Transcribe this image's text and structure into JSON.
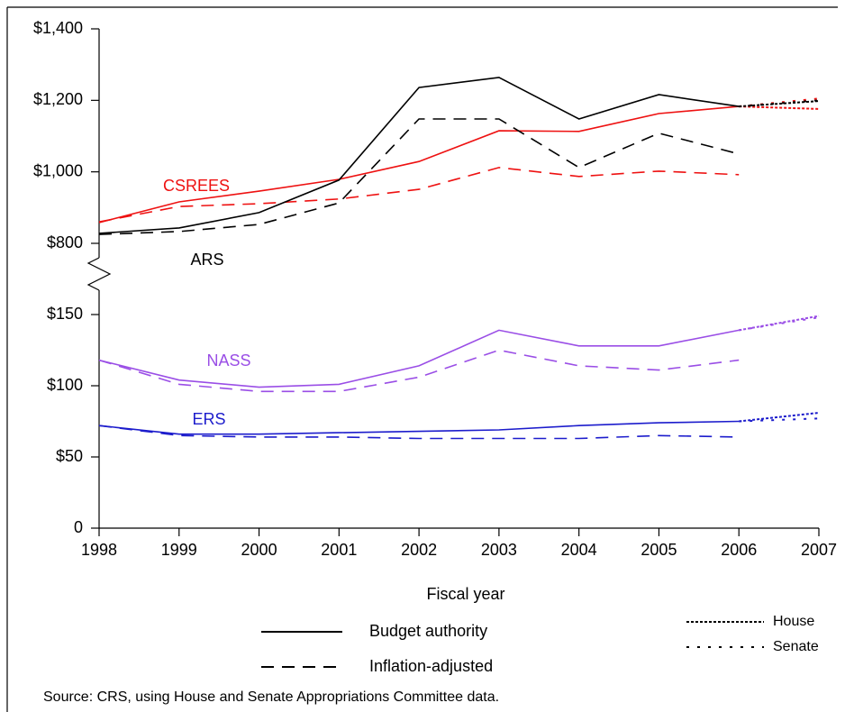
{
  "chart_data": {
    "type": "line",
    "x_label": "Fiscal year",
    "source": "Source: CRS, using House and Senate Appropriations Committee data.",
    "x": [
      1998,
      1999,
      2000,
      2001,
      2002,
      2003,
      2004,
      2005,
      2006,
      2007
    ],
    "xlim": [
      1998,
      2007
    ],
    "xticks": [
      1998,
      1999,
      2000,
      2001,
      2002,
      2003,
      2004,
      2005,
      2006,
      2007
    ],
    "ylim": [
      0,
      150
    ],
    "yticks": [
      0,
      {
        "value": 50,
        "label": "$50"
      },
      {
        "value": 100,
        "label": "$100"
      },
      {
        "value": 150,
        "label": "$150"
      }
    ],
    "ylim_upper": [
      800,
      1400
    ],
    "yticks_upper": [
      {
        "value": 800,
        "label": "$800"
      },
      {
        "value": 1000,
        "label": "$1,000"
      },
      {
        "value": 1200,
        "label": "$1,200"
      },
      {
        "value": 1400,
        "label": "$1,400"
      }
    ],
    "line_styles": [
      {
        "label": "Budget authority",
        "dash": "none"
      },
      {
        "label": "Inflation-adjusted",
        "dash": "14 9"
      },
      {
        "label": "House",
        "dash": "3 2"
      },
      {
        "label": "Senate",
        "dash": "3 9"
      }
    ],
    "series": [
      {
        "name": "CSREES",
        "color": "#ee1111",
        "axis": "upper",
        "values": [
          858,
          916,
          946,
          979,
          1029,
          1115,
          1113,
          1163,
          1183,
          null
        ],
        "inflation_adjusted": [
          860,
          903,
          911,
          924,
          951,
          1012,
          987,
          1002,
          992,
          null
        ],
        "house": [
          null,
          null,
          null,
          null,
          null,
          null,
          null,
          null,
          null,
          1176
        ],
        "senate": [
          null,
          null,
          null,
          null,
          null,
          null,
          null,
          null,
          null,
          1205
        ]
      },
      {
        "name": "ARS",
        "color": "#000000",
        "axis": "upper",
        "values": [
          828,
          843,
          886,
          977,
          1236,
          1264,
          1148,
          1216,
          1183,
          null
        ],
        "inflation_adjusted": [
          825,
          833,
          853,
          913,
          1148,
          1148,
          1012,
          1108,
          1050,
          null
        ],
        "house": [
          null,
          null,
          null,
          null,
          null,
          null,
          null,
          null,
          null,
          1198
        ],
        "senate": [
          null,
          null,
          null,
          null,
          null,
          null,
          null,
          null,
          null,
          1200
        ]
      },
      {
        "name": "NASS",
        "color": "#9a4ee6",
        "axis": "lower",
        "values": [
          118,
          104,
          99,
          101,
          114,
          139,
          128,
          128,
          139,
          null
        ],
        "inflation_adjusted": [
          118,
          101,
          96,
          96,
          106,
          125,
          114,
          111,
          118,
          null
        ],
        "house": [
          null,
          null,
          null,
          null,
          null,
          null,
          null,
          null,
          null,
          149
        ],
        "senate": [
          null,
          null,
          null,
          null,
          null,
          null,
          null,
          null,
          null,
          148
        ]
      },
      {
        "name": "ERS",
        "color": "#1c1ccc",
        "axis": "lower",
        "values": [
          72,
          66,
          66,
          67,
          68,
          69,
          72,
          74,
          75,
          null
        ],
        "inflation_adjusted": [
          72,
          65,
          64,
          64,
          63,
          63,
          63,
          65,
          64,
          null
        ],
        "house": [
          null,
          null,
          null,
          null,
          null,
          null,
          null,
          null,
          null,
          81
        ],
        "senate": [
          null,
          null,
          null,
          null,
          null,
          null,
          null,
          null,
          null,
          77
        ]
      }
    ]
  }
}
